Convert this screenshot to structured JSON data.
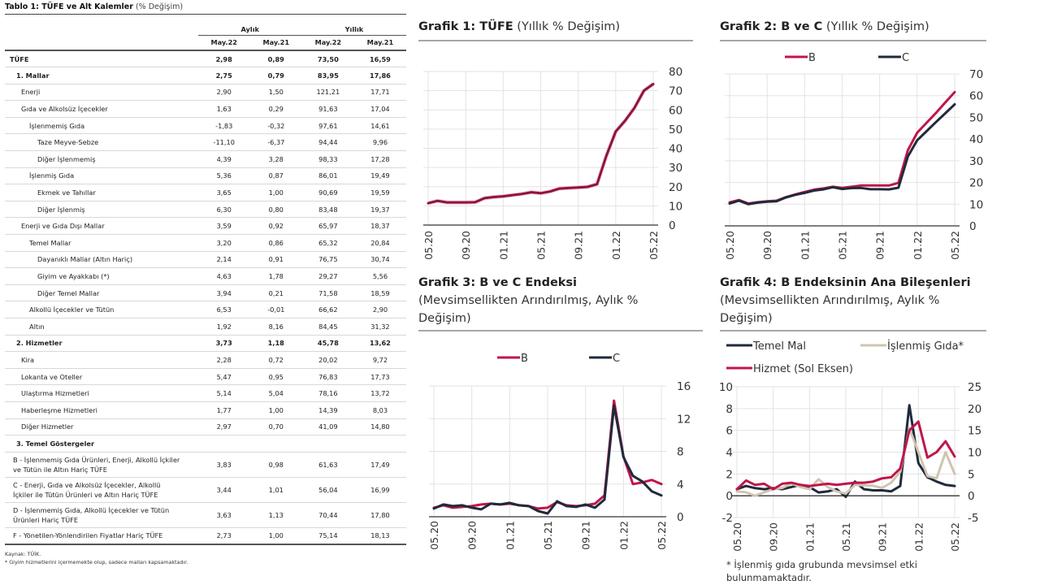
{
  "table": {
    "title_bold": "Tablo 1: TÜFE ve Alt Kalemler",
    "title_sub": "(% Değişim)",
    "group_headers": [
      "Aylık",
      "Yıllık"
    ],
    "column_headers": [
      "May.22",
      "May.21",
      "May.22",
      "May.21"
    ],
    "rows": [
      {
        "label": "TÜFE",
        "values": [
          "2,98",
          "0,89",
          "73,50",
          "16,59"
        ],
        "bold": true,
        "level": 0
      },
      {
        "label": "1. Mallar",
        "values": [
          "2,75",
          "0,79",
          "83,95",
          "17,86"
        ],
        "bold": true,
        "level": 1
      },
      {
        "label": "Enerji",
        "values": [
          "2,90",
          "1,50",
          "121,21",
          "17,71"
        ],
        "bold": false,
        "level": 2
      },
      {
        "label": "Gıda ve Alkolsüz İçecekler",
        "values": [
          "1,63",
          "0,29",
          "91,63",
          "17,04"
        ],
        "bold": false,
        "level": 2
      },
      {
        "label": "İşlenmemiş Gıda",
        "values": [
          "-1,83",
          "-0,32",
          "97,61",
          "14,61"
        ],
        "bold": false,
        "level": 3
      },
      {
        "label": "Taze Meyve-Sebze",
        "values": [
          "-11,10",
          "-6,37",
          "94,44",
          "9,96"
        ],
        "bold": false,
        "level": 4
      },
      {
        "label": "Diğer İşlenmemiş",
        "values": [
          "4,39",
          "3,28",
          "98,33",
          "17,28"
        ],
        "bold": false,
        "level": 4
      },
      {
        "label": "İşlenmiş Gıda",
        "values": [
          "5,36",
          "0,87",
          "86,01",
          "19,49"
        ],
        "bold": false,
        "level": 3
      },
      {
        "label": "Ekmek ve Tahıllar",
        "values": [
          "3,65",
          "1,00",
          "90,69",
          "19,59"
        ],
        "bold": false,
        "level": 4
      },
      {
        "label": "Diğer İşlenmiş",
        "values": [
          "6,30",
          "0,80",
          "83,48",
          "19,37"
        ],
        "bold": false,
        "level": 4
      },
      {
        "label": "Enerji ve Gıda Dışı Mallar",
        "values": [
          "3,59",
          "0,92",
          "65,97",
          "18,37"
        ],
        "bold": false,
        "level": 2
      },
      {
        "label": "Temel Mallar",
        "values": [
          "3,20",
          "0,86",
          "65,32",
          "20,84"
        ],
        "bold": false,
        "level": 3
      },
      {
        "label": "Dayanıklı Mallar (Altın Hariç)",
        "values": [
          "2,14",
          "0,91",
          "76,75",
          "30,74"
        ],
        "bold": false,
        "level": 4
      },
      {
        "label": "Giyim ve Ayakkabı (*)",
        "values": [
          "4,63",
          "1,78",
          "29,27",
          "5,56"
        ],
        "bold": false,
        "level": 4
      },
      {
        "label": "Diğer Temel Mallar",
        "values": [
          "3,94",
          "0,21",
          "71,58",
          "18,59"
        ],
        "bold": false,
        "level": 4
      },
      {
        "label": "Alkollü İçecekler ve Tütün",
        "values": [
          "6,53",
          "-0,01",
          "66,62",
          "2,90"
        ],
        "bold": false,
        "level": 3
      },
      {
        "label": "Altın",
        "values": [
          "1,92",
          "8,16",
          "84,45",
          "31,32"
        ],
        "bold": false,
        "level": 3
      },
      {
        "label": "2. Hizmetler",
        "values": [
          "3,73",
          "1,18",
          "45,78",
          "13,62"
        ],
        "bold": true,
        "level": 1
      },
      {
        "label": "Kira",
        "values": [
          "2,28",
          "0,72",
          "20,02",
          "9,72"
        ],
        "bold": false,
        "level": 2
      },
      {
        "label": "Lokanta ve Oteller",
        "values": [
          "5,47",
          "0,95",
          "76,83",
          "17,73"
        ],
        "bold": false,
        "level": 2
      },
      {
        "label": "Ulaştırma Hizmetleri",
        "values": [
          "5,14",
          "5,04",
          "78,16",
          "13,72"
        ],
        "bold": false,
        "level": 2
      },
      {
        "label": "Haberleşme Hizmetleri",
        "values": [
          "1,77",
          "1,00",
          "14,39",
          "8,03"
        ],
        "bold": false,
        "level": 2
      },
      {
        "label": "Diğer Hizmetler",
        "values": [
          "2,97",
          "0,70",
          "41,09",
          "14,80"
        ],
        "bold": false,
        "level": 2
      },
      {
        "label": "3. Temel Göstergeler",
        "values": [
          "",
          "",
          "",
          ""
        ],
        "bold": true,
        "level": 1
      },
      {
        "label": "B - İşlenmemiş Gıda Ürünleri, Enerji, Alkollü İçkiler ve Tütün ile Altın Hariç TÜFE",
        "values": [
          "3,83",
          "0,98",
          "61,63",
          "17,49"
        ],
        "bold": false,
        "level": "b"
      },
      {
        "label": "C - Enerji, Gıda ve Alkolsüz İçecekler, Alkollü İçkiler ile Tütün Ürünleri ve Altın Hariç TÜFE",
        "values": [
          "3,44",
          "1,01",
          "56,04",
          "16,99"
        ],
        "bold": false,
        "level": "b"
      },
      {
        "label": "D - İşlenmemiş Gıda, Alkollü İçecekler ve Tütün Ürünleri Hariç TÜFE",
        "values": [
          "3,63",
          "1,13",
          "70,44",
          "17,80"
        ],
        "bold": false,
        "level": "b"
      },
      {
        "label": "F - Yönetilen-Yönlendirilen Fiyatlar Hariç TÜFE",
        "values": [
          "2,73",
          "1,00",
          "75,14",
          "18,13"
        ],
        "bold": false,
        "level": "b"
      }
    ],
    "source_note": "Kaynak: TÜİK.",
    "footnote": "* Giyim hizmetlerini içermemekte olup, sadece malları kapsamaktadır."
  },
  "colors": {
    "b_red": "#c0164a",
    "c_navy": "#1f2a3c",
    "islenmis_beige": "#cfc5b0",
    "temel_navy": "#1f2a3c",
    "hizmet_red": "#c0164a",
    "grid": "#e3e3e3",
    "axis": "#333333"
  },
  "chart_data": [
    {
      "id": "grafik1",
      "type": "line",
      "title_bold": "Grafik 1: TÜFE",
      "title_sub": "(Yıllık % Değişim)",
      "x": [
        "05.20",
        "06.20",
        "07.20",
        "08.20",
        "09.20",
        "10.20",
        "11.20",
        "12.20",
        "01.21",
        "02.21",
        "03.21",
        "04.21",
        "05.21",
        "06.21",
        "07.21",
        "08.21",
        "09.21",
        "10.21",
        "11.21",
        "12.21",
        "01.22",
        "02.22",
        "03.22",
        "04.22",
        "05.22"
      ],
      "x_tick_labels": [
        "05.20",
        "09.20",
        "01.21",
        "05.21",
        "09.21",
        "01.22",
        "05.22"
      ],
      "series": [
        {
          "name": "TÜFE",
          "color": "#8e1539",
          "axis": "right",
          "values": [
            11.4,
            12.6,
            11.8,
            11.8,
            11.8,
            11.9,
            14.0,
            14.6,
            15.0,
            15.6,
            16.2,
            17.1,
            16.6,
            17.5,
            19.0,
            19.3,
            19.6,
            19.9,
            21.3,
            36.1,
            48.7,
            54.4,
            61.1,
            70.0,
            73.5
          ]
        }
      ],
      "y_right": {
        "min": 0,
        "max": 80,
        "ticks": [
          0,
          10,
          20,
          30,
          40,
          50,
          60,
          70,
          80
        ]
      },
      "legend": "none",
      "grid": true
    },
    {
      "id": "grafik2",
      "type": "line",
      "title_bold": "Grafik 2: B ve C",
      "title_sub": "(Yıllık % Değişim)",
      "x": [
        "05.20",
        "06.20",
        "07.20",
        "08.20",
        "09.20",
        "10.20",
        "11.20",
        "12.20",
        "01.21",
        "02.21",
        "03.21",
        "04.21",
        "05.21",
        "06.21",
        "07.21",
        "08.21",
        "09.21",
        "10.21",
        "11.21",
        "12.21",
        "01.22",
        "02.22",
        "03.22",
        "04.22",
        "05.22"
      ],
      "x_tick_labels": [
        "05.20",
        "09.20",
        "01.21",
        "05.21",
        "09.21",
        "01.22",
        "05.22"
      ],
      "series": [
        {
          "name": "B",
          "color": "#c0164a",
          "axis": "right",
          "values": [
            10.8,
            11.9,
            10.3,
            10.9,
            11.3,
            11.6,
            13.2,
            14.5,
            15.6,
            16.7,
            17.3,
            18.0,
            17.5,
            18.0,
            18.6,
            18.6,
            18.6,
            18.6,
            19.8,
            34.8,
            42.9,
            47.5,
            52.0,
            56.9,
            61.6
          ]
        },
        {
          "name": "C",
          "color": "#1f2a3c",
          "axis": "right",
          "values": [
            10.3,
            11.6,
            10.0,
            10.7,
            11.1,
            11.3,
            13.1,
            14.3,
            15.2,
            16.3,
            16.8,
            17.8,
            17.0,
            17.4,
            17.5,
            16.9,
            16.9,
            16.8,
            17.6,
            31.9,
            39.4,
            43.6,
            47.8,
            51.9,
            56.0
          ]
        }
      ],
      "y_right": {
        "min": 0,
        "max": 70,
        "ticks": [
          0,
          10,
          20,
          30,
          40,
          50,
          60,
          70
        ]
      },
      "legend": "top",
      "grid": true
    },
    {
      "id": "grafik3",
      "type": "line",
      "title_bold": "Grafik 3: B ve C Endeksi",
      "title_sub": "(Mevsimsellikten Arındırılmış, Aylık % Değişim)",
      "x": [
        "05.20",
        "06.20",
        "07.20",
        "08.20",
        "09.20",
        "10.20",
        "11.20",
        "12.20",
        "01.21",
        "02.21",
        "03.21",
        "04.21",
        "05.21",
        "06.21",
        "07.21",
        "08.21",
        "09.21",
        "10.21",
        "11.21",
        "12.21",
        "01.22",
        "02.22",
        "03.22",
        "04.22",
        "05.22"
      ],
      "x_tick_labels": [
        "05.20",
        "09.20",
        "01.21",
        "05.21",
        "09.21",
        "01.22",
        "05.22"
      ],
      "series": [
        {
          "name": "B",
          "color": "#c0164a",
          "axis": "right",
          "values": [
            1.1,
            1.4,
            1.1,
            1.2,
            1.3,
            1.5,
            1.6,
            1.5,
            1.6,
            1.4,
            1.3,
            1.0,
            1.1,
            1.8,
            1.4,
            1.3,
            1.4,
            1.6,
            2.6,
            14.2,
            7.4,
            4.0,
            4.2,
            4.5,
            4.0
          ]
        },
        {
          "name": "C",
          "color": "#1f2a3c",
          "axis": "right",
          "values": [
            1.0,
            1.5,
            1.3,
            1.4,
            1.1,
            0.9,
            1.6,
            1.5,
            1.7,
            1.4,
            1.3,
            0.7,
            0.4,
            1.9,
            1.3,
            1.2,
            1.5,
            1.1,
            2.1,
            13.6,
            7.3,
            5.0,
            4.3,
            3.1,
            2.6
          ]
        }
      ],
      "y_right": {
        "min": 0,
        "max": 16,
        "ticks": [
          0,
          4,
          8,
          12,
          16
        ]
      },
      "legend": "top",
      "grid": true
    },
    {
      "id": "grafik4",
      "type": "line",
      "title_bold": "Grafik 4: B Endeksinin Ana Bileşenleri",
      "title_sub": "(Mevsimsellikten Arındırılmış, Aylık % Değişim)",
      "x": [
        "05.20",
        "06.20",
        "07.20",
        "08.20",
        "09.20",
        "10.20",
        "11.20",
        "12.20",
        "01.21",
        "02.21",
        "03.21",
        "04.21",
        "05.21",
        "06.21",
        "07.21",
        "08.21",
        "09.21",
        "10.21",
        "11.21",
        "12.21",
        "01.22",
        "02.22",
        "03.22",
        "04.22",
        "05.22"
      ],
      "x_tick_labels": [
        "05.20",
        "09.20",
        "01.21",
        "05.21",
        "09.21",
        "01.22",
        "05.22"
      ],
      "series": [
        {
          "name": "Temel Mal",
          "color": "#1f2a3c",
          "axis": "left",
          "values": [
            0.6,
            0.9,
            0.7,
            0.6,
            0.7,
            0.6,
            0.8,
            1.0,
            0.8,
            0.3,
            0.4,
            0.6,
            -0.1,
            1.3,
            0.6,
            0.5,
            0.5,
            0.4,
            0.9,
            8.3,
            3.0,
            1.7,
            1.3,
            1.0,
            0.9
          ]
        },
        {
          "name": "İşlenmiş Gıda*",
          "color": "#cfc5b0",
          "axis": "right",
          "values": [
            1.0,
            0.8,
            0.0,
            0.8,
            1.5,
            1.8,
            2.8,
            2.0,
            1.5,
            3.8,
            2.0,
            1.0,
            0.5,
            2.5,
            2.4,
            2.3,
            1.8,
            3.0,
            5.5,
            15.5,
            10.0,
            4.5,
            4.0,
            10.0,
            5.0
          ]
        },
        {
          "name": "Hizmet (Sol Eksen)",
          "color": "#c0164a",
          "axis": "left",
          "values": [
            0.6,
            1.4,
            1.0,
            1.1,
            0.6,
            1.1,
            1.2,
            1.0,
            0.9,
            1.0,
            1.1,
            1.0,
            1.1,
            1.2,
            1.2,
            1.3,
            1.6,
            1.7,
            2.5,
            6.0,
            6.8,
            3.5,
            4.0,
            5.0,
            3.6
          ]
        }
      ],
      "y_left": {
        "min": -2,
        "max": 10,
        "ticks": [
          -2,
          0,
          2,
          4,
          6,
          8,
          10
        ]
      },
      "y_right": {
        "min": -5,
        "max": 25,
        "ticks": [
          -5,
          0,
          5,
          10,
          15,
          20,
          25
        ]
      },
      "legend": "top",
      "grid": true,
      "note": "* İşlenmiş gıda grubunda mevsimsel etki bulunmamaktadır."
    }
  ]
}
